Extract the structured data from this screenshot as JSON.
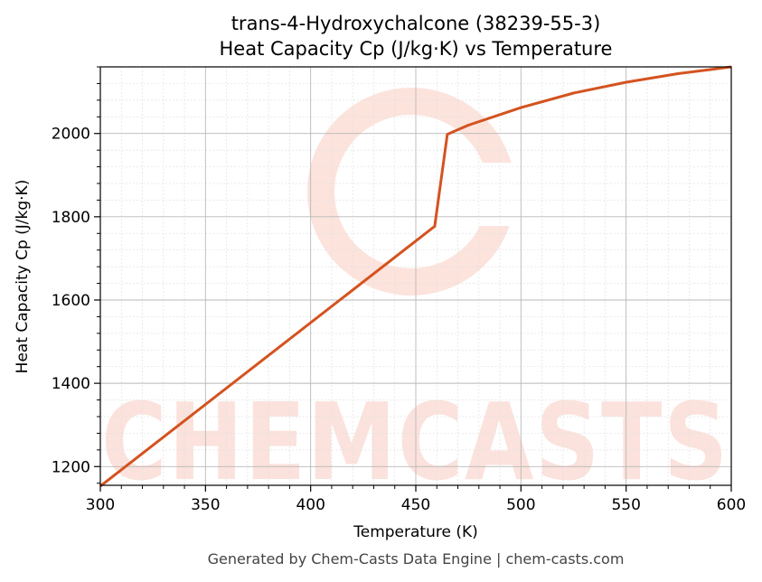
{
  "chart_data": {
    "type": "line",
    "title": "trans-4-Hydroxychalcone (38239-55-3)",
    "subtitle": "Heat Capacity Cp (J/kg·K) vs Temperature",
    "xlabel": "Temperature (K)",
    "ylabel": "Heat Capacity Cp (J/kg·K)",
    "xlim": [
      300,
      600
    ],
    "ylim": [
      1155,
      2160
    ],
    "x_ticks": [
      300,
      350,
      400,
      450,
      500,
      550,
      600
    ],
    "y_ticks": [
      1200,
      1400,
      1600,
      1800,
      2000
    ],
    "grid": true,
    "line_color": "#d4531f",
    "series": [
      {
        "x": [
          300,
          459,
          465,
          475,
          500,
          525,
          550,
          575,
          600
        ],
        "y": [
          1153,
          1777,
          1998,
          2020,
          2062,
          2097,
          2123,
          2144,
          2160
        ]
      }
    ]
  },
  "footer": "Generated by Chem-Casts Data Engine | chem-casts.com",
  "watermark": "CHEMCASTS"
}
